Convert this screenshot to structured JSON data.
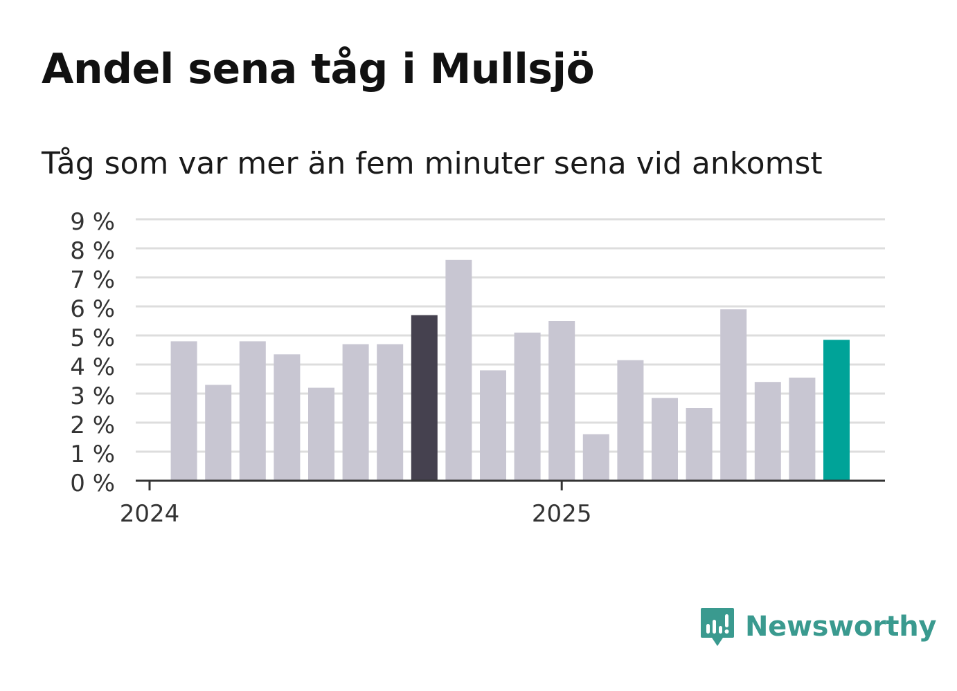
{
  "title": "Andel sena tåg i Mullsjö",
  "subtitle": "Tåg som var mer än fem minuter sena vid ankomst",
  "brand": {
    "name": "Newsworthy",
    "icon": "newsworthy-logo-icon"
  },
  "colors": {
    "bar_default": "#c8c6d2",
    "bar_highlight_dark": "#45414f",
    "bar_latest": "#00a398",
    "grid": "#dddddd",
    "axis": "#333333",
    "brand": "#3a9a8f"
  },
  "chart_data": {
    "type": "bar",
    "x_labels": [
      "2024",
      "2025"
    ],
    "x_label_positions": [
      0,
      12
    ],
    "values": [
      4.8,
      3.3,
      4.8,
      4.35,
      3.2,
      4.7,
      4.7,
      5.7,
      7.6,
      3.8,
      5.1,
      5.5,
      1.6,
      4.15,
      2.85,
      2.5,
      5.9,
      3.4,
      3.55,
      4.85
    ],
    "first_bar_index": 1,
    "bar_colors": [
      "default",
      "default",
      "default",
      "default",
      "default",
      "default",
      "default",
      "dark",
      "default",
      "default",
      "default",
      "default",
      "default",
      "default",
      "default",
      "default",
      "default",
      "default",
      "default",
      "latest"
    ],
    "y_ticks": [
      "0 %",
      "1 %",
      "2 %",
      "3 %",
      "4 %",
      "5 %",
      "6 %",
      "7 %",
      "8 %",
      "9 %"
    ],
    "ylim": [
      0,
      9
    ],
    "xlabel": "",
    "ylabel": "",
    "grid": true,
    "legend": "none"
  }
}
